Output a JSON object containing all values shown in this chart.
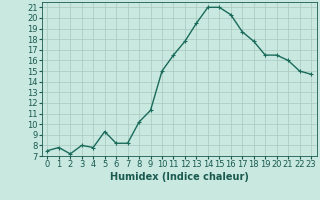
{
  "x": [
    0,
    1,
    2,
    3,
    4,
    5,
    6,
    7,
    8,
    9,
    10,
    11,
    12,
    13,
    14,
    15,
    16,
    17,
    18,
    19,
    20,
    21,
    22,
    23
  ],
  "y": [
    7.5,
    7.8,
    7.2,
    8.0,
    7.8,
    9.3,
    8.2,
    8.2,
    10.2,
    11.3,
    15.0,
    16.5,
    17.8,
    19.5,
    21.0,
    21.0,
    20.3,
    18.7,
    17.8,
    16.5,
    16.5,
    16.0,
    15.0,
    14.7
  ],
  "xlabel": "Humidex (Indice chaleur)",
  "xlim": [
    -0.5,
    23.5
  ],
  "ylim": [
    7,
    21.5
  ],
  "yticks": [
    7,
    8,
    9,
    10,
    11,
    12,
    13,
    14,
    15,
    16,
    17,
    18,
    19,
    20,
    21
  ],
  "xticks": [
    0,
    1,
    2,
    3,
    4,
    5,
    6,
    7,
    8,
    9,
    10,
    11,
    12,
    13,
    14,
    15,
    16,
    17,
    18,
    19,
    20,
    21,
    22,
    23
  ],
  "line_color": "#1a6b5a",
  "marker": "+",
  "bg_color": "#c8e8e0",
  "grid_color": "#a8c8c0",
  "label_color": "#1a5a50",
  "tick_fontsize": 6,
  "xlabel_fontsize": 7,
  "line_width": 1.0,
  "marker_size": 3.5,
  "marker_edge_width": 0.8
}
